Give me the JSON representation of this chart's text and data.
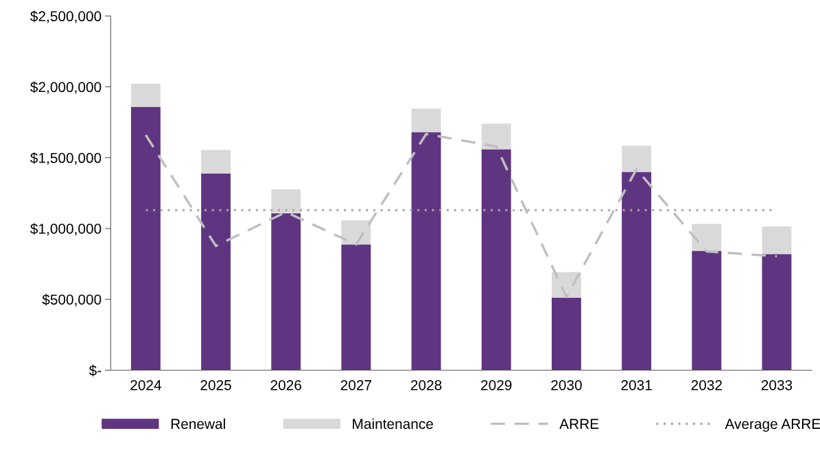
{
  "chart_data": {
    "type": "bar",
    "stacked": true,
    "categories": [
      "2024",
      "2025",
      "2026",
      "2027",
      "2028",
      "2029",
      "2030",
      "2031",
      "2032",
      "2033"
    ],
    "series": [
      {
        "name": "Renewal",
        "color": "#5f3581",
        "values": [
          1857000,
          1389000,
          1106000,
          887000,
          1681000,
          1559000,
          512000,
          1399000,
          843000,
          819000
        ]
      },
      {
        "name": "Maintenance",
        "color": "#d9d9d9",
        "values": [
          165000,
          166000,
          171000,
          170000,
          166000,
          181000,
          180000,
          185000,
          190000,
          195000
        ]
      },
      {
        "name": "ARRE",
        "type": "line",
        "line_style": "dashed",
        "color": "#bfbfbf",
        "values": [
          1660000,
          877000,
          1116000,
          887000,
          1667000,
          1579000,
          517000,
          1418000,
          838000,
          804000
        ]
      }
    ],
    "ref_lines": [
      {
        "axis": "y",
        "value": 1130000,
        "label": "Average ARRE",
        "color": "#a6a6a6",
        "line_style": "dotted"
      }
    ],
    "ylim": [
      0,
      2500000
    ],
    "yticks": [
      {
        "value": 0,
        "label": "$-"
      },
      {
        "value": 500000,
        "label": "$500,000"
      },
      {
        "value": 1000000,
        "label": "$1,000,000"
      },
      {
        "value": 1500000,
        "label": "$1,500,000"
      },
      {
        "value": 2000000,
        "label": "$2,000,000"
      },
      {
        "value": 2500000,
        "label": "$2,500,000"
      }
    ],
    "grid": false,
    "legend": "bottom"
  }
}
